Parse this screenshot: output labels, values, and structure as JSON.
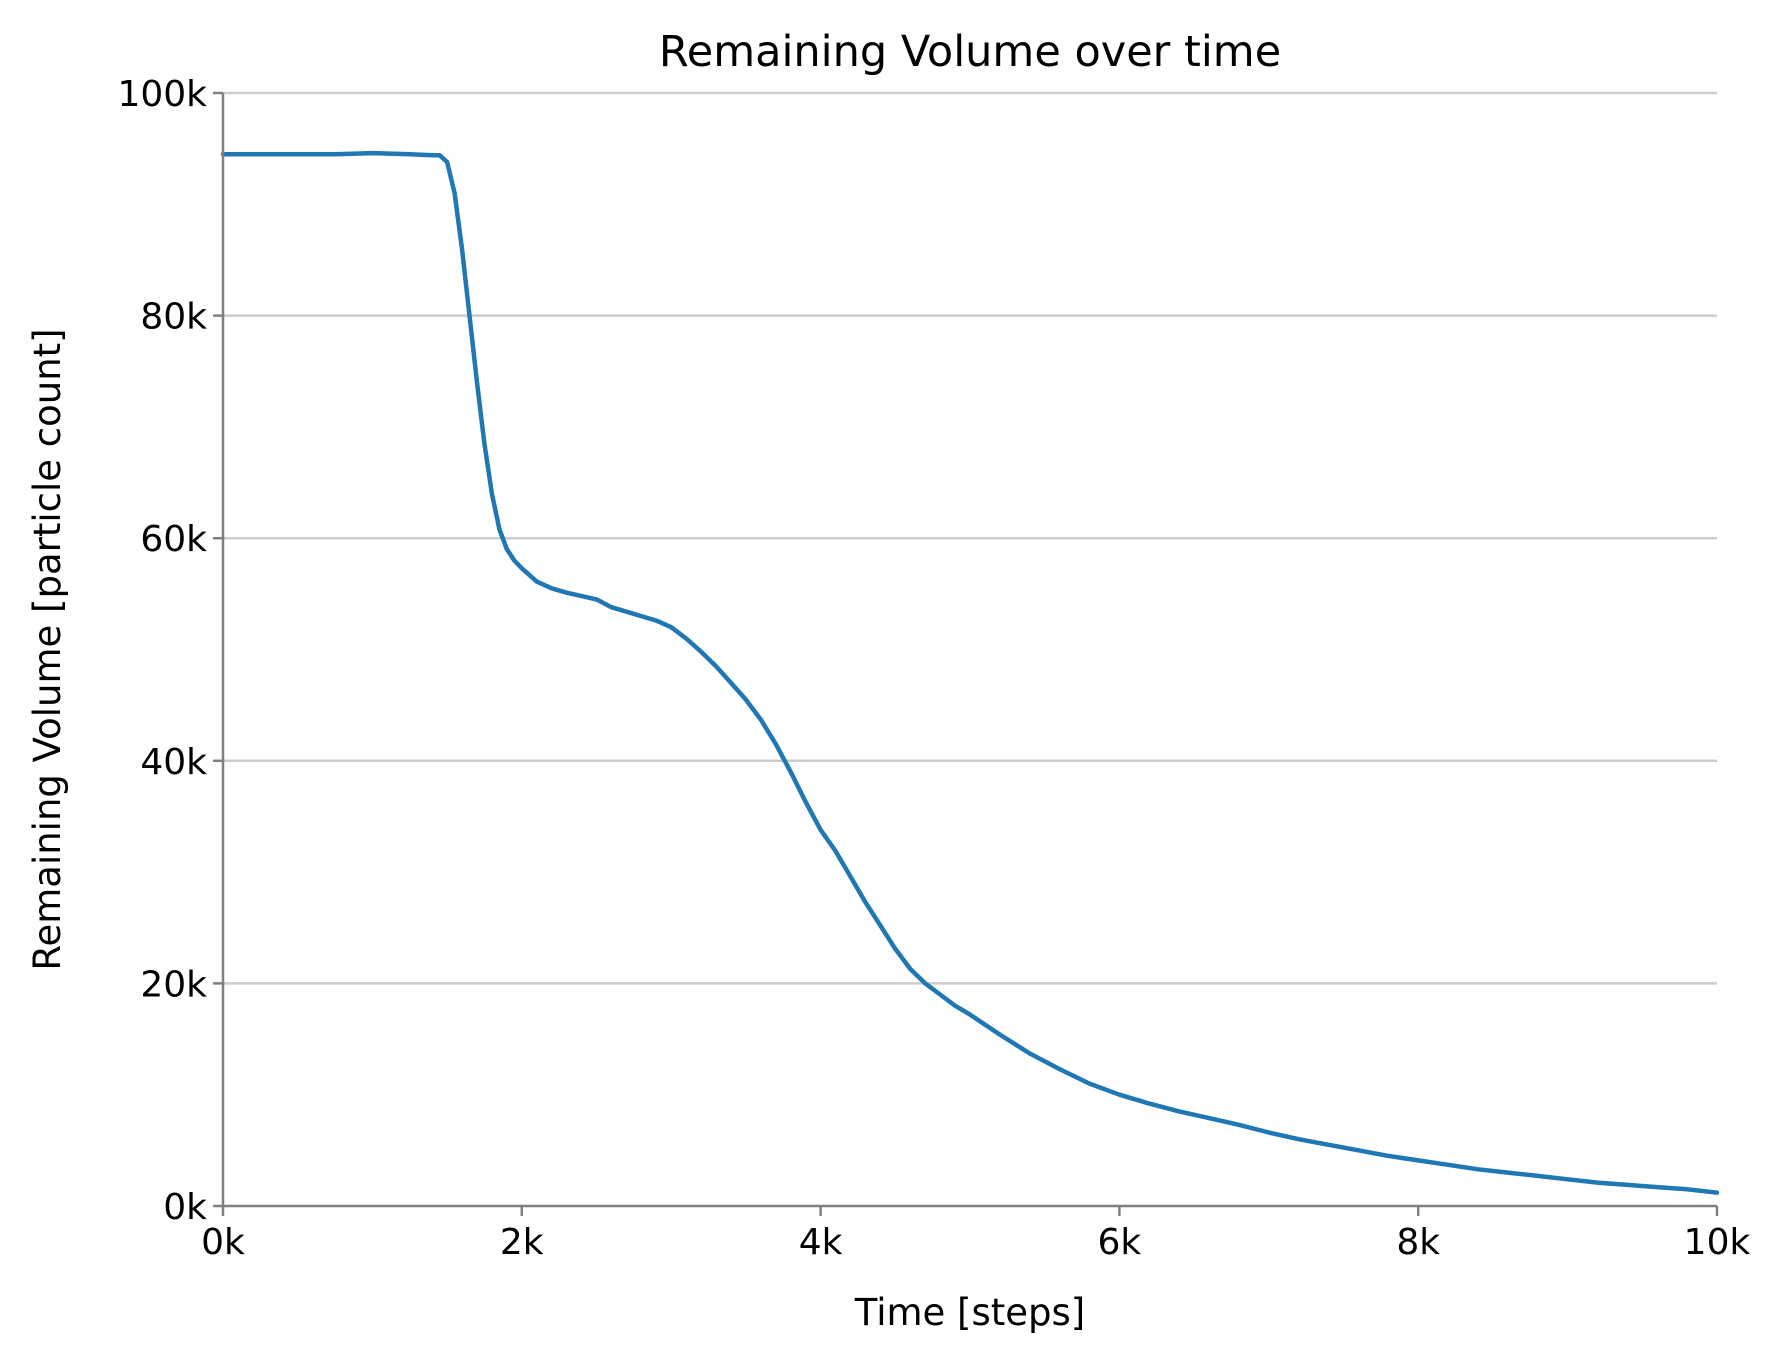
{
  "chart_data": {
    "type": "line",
    "title": "Remaining Volume over time",
    "xlabel": "Time [steps]",
    "ylabel": "Remaining Volume [particle count]",
    "xlim": [
      0,
      10000
    ],
    "ylim": [
      0,
      100000
    ],
    "x_ticks": [
      {
        "value": 0,
        "label": "0k"
      },
      {
        "value": 2000,
        "label": "2k"
      },
      {
        "value": 4000,
        "label": "4k"
      },
      {
        "value": 6000,
        "label": "6k"
      },
      {
        "value": 8000,
        "label": "8k"
      },
      {
        "value": 10000,
        "label": "10k"
      }
    ],
    "y_ticks": [
      {
        "value": 0,
        "label": "0k"
      },
      {
        "value": 20000,
        "label": "20k"
      },
      {
        "value": 40000,
        "label": "40k"
      },
      {
        "value": 60000,
        "label": "60k"
      },
      {
        "value": 80000,
        "label": "80k"
      },
      {
        "value": 100000,
        "label": "100k"
      }
    ],
    "grid": "horizontal",
    "legend": "none",
    "colors": {
      "line": "#1f77b4",
      "grid": "#cccccc",
      "spine": "#808080"
    },
    "series": [
      {
        "x": [
          0,
          250,
          500,
          750,
          1000,
          1250,
          1400,
          1450,
          1500,
          1550,
          1600,
          1650,
          1700,
          1750,
          1800,
          1850,
          1900,
          1950,
          2000,
          2050,
          2100,
          2150,
          2200,
          2300,
          2400,
          2500,
          2600,
          2700,
          2800,
          2900,
          3000,
          3100,
          3200,
          3300,
          3400,
          3500,
          3600,
          3700,
          3800,
          3900,
          4000,
          4100,
          4200,
          4300,
          4400,
          4500,
          4600,
          4700,
          4800,
          4900,
          5000,
          5200,
          5400,
          5600,
          5800,
          6000,
          6200,
          6400,
          6600,
          6800,
          7000,
          7200,
          7400,
          7600,
          7800,
          8000,
          8200,
          8400,
          8600,
          8800,
          9000,
          9200,
          9400,
          9600,
          9800,
          10000
        ],
        "y": [
          94500,
          94500,
          94500,
          94500,
          94600,
          94500,
          94400,
          94400,
          93800,
          91000,
          86000,
          80000,
          74000,
          68500,
          64000,
          60800,
          59000,
          58000,
          57300,
          56700,
          56100,
          55800,
          55500,
          55100,
          54800,
          54500,
          53800,
          53400,
          53000,
          52600,
          52000,
          51000,
          49800,
          48500,
          47000,
          45500,
          43700,
          41500,
          39000,
          36300,
          33800,
          31900,
          29600,
          27300,
          25200,
          23100,
          21300,
          20000,
          19000,
          18000,
          17200,
          15400,
          13700,
          12300,
          11000,
          10000,
          9200,
          8500,
          7900,
          7300,
          6600,
          6000,
          5500,
          5000,
          4500,
          4100,
          3700,
          3300,
          3000,
          2700,
          2400,
          2100,
          1900,
          1700,
          1500,
          1200
        ]
      }
    ]
  }
}
